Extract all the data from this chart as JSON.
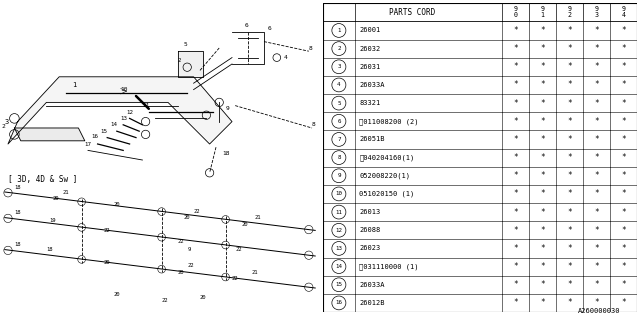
{
  "diagram_id": "A260000030",
  "bg_color": "#ffffff",
  "line_color": "#000000",
  "rows": [
    [
      "1",
      "26001",
      "*",
      "*",
      "*",
      "*",
      "*"
    ],
    [
      "2",
      "26032",
      "*",
      "*",
      "*",
      "*",
      "*"
    ],
    [
      "3",
      "26031",
      "*",
      "*",
      "*",
      "*",
      "*"
    ],
    [
      "4",
      "26033A",
      "*",
      "*",
      "*",
      "*",
      "*"
    ],
    [
      "5",
      "83321",
      "*",
      "*",
      "*",
      "*",
      "*"
    ],
    [
      "6",
      "Ⓑ011008200 (2)",
      "*",
      "*",
      "*",
      "*",
      "*"
    ],
    [
      "7",
      "26051B",
      "*",
      "*",
      "*",
      "*",
      "*"
    ],
    [
      "8",
      "Ⓢ040204160(1)",
      "*",
      "*",
      "*",
      "*",
      "*"
    ],
    [
      "9",
      "052008220(1)",
      "*",
      "*",
      "*",
      "*",
      "*"
    ],
    [
      "10",
      "051020150 (1)",
      "*",
      "*",
      "*",
      "*",
      "*"
    ],
    [
      "11",
      "26013",
      "*",
      "*",
      "*",
      "*",
      "*"
    ],
    [
      "12",
      "26088",
      "*",
      "*",
      "*",
      "*",
      "*"
    ],
    [
      "13",
      "26023",
      "*",
      "*",
      "*",
      "*",
      "*"
    ],
    [
      "14",
      "Ⓦ031110000 (1)",
      "*",
      "*",
      "*",
      "*",
      "*"
    ],
    [
      "15",
      "26033A",
      "*",
      "*",
      "*",
      "*",
      "*"
    ],
    [
      "16",
      "26012B",
      "*",
      "*",
      "*",
      "*",
      "*"
    ]
  ],
  "year_headers": [
    "9\n0",
    "9\n1",
    "9\n2",
    "9\n3",
    "9\n4"
  ]
}
